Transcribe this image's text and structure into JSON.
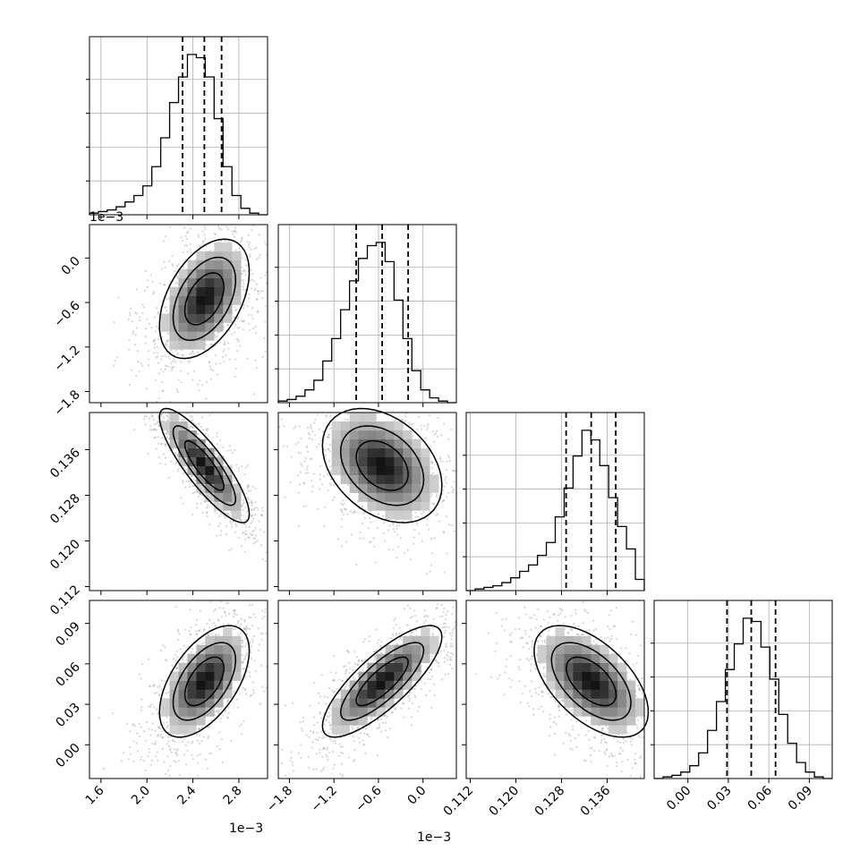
{
  "chart_data": {
    "type": "corner",
    "parameters": [
      {
        "label": "",
        "range": [
          1.5,
          3.05
        ],
        "ticks": [
          1.6,
          2.0,
          2.4,
          2.8
        ],
        "tick_labels": [
          "1.6",
          "2.0",
          "2.4",
          "2.8"
        ],
        "offset_label": "1e−3",
        "quantiles": [
          2.31,
          2.5,
          2.65
        ]
      },
      {
        "label": "",
        "range": [
          -1.95,
          0.45
        ],
        "ticks": [
          -1.8,
          -1.2,
          -0.6,
          0.0
        ],
        "tick_labels": [
          "−1.8",
          "−1.2",
          "−0.6",
          "0.0"
        ],
        "offset_label": "1e−3",
        "quantiles": [
          -0.9,
          -0.55,
          -0.2
        ]
      },
      {
        "label": "",
        "range": [
          0.1113,
          0.1425
        ],
        "ticks": [
          0.112,
          0.12,
          0.128,
          0.136
        ],
        "tick_labels": [
          "0.112",
          "0.120",
          "0.128",
          "0.136"
        ],
        "offset_label": "",
        "quantiles": [
          0.1288,
          0.1332,
          0.1375
        ]
      },
      {
        "label": "",
        "range": [
          -0.025,
          0.107
        ],
        "ticks": [
          0.0,
          0.03,
          0.06,
          0.09
        ],
        "tick_labels": [
          "0.00",
          "0.03",
          "0.06",
          "0.09"
        ],
        "offset_label": "",
        "quantiles": [
          0.029,
          0.047,
          0.065
        ]
      }
    ],
    "correlations": [
      [
        1.0,
        0.45,
        -0.85,
        0.55
      ],
      [
        0.45,
        1.0,
        -0.35,
        0.8
      ],
      [
        -0.85,
        -0.35,
        1.0,
        -0.55
      ],
      [
        0.55,
        0.8,
        -0.55,
        1.0
      ]
    ],
    "histograms": [
      [
        1,
        2,
        3,
        5,
        8,
        12,
        18,
        30,
        48,
        70,
        86,
        100,
        98,
        86,
        60,
        30,
        12,
        4,
        1,
        0
      ],
      [
        1,
        2,
        4,
        8,
        14,
        26,
        40,
        58,
        76,
        90,
        98,
        100,
        88,
        64,
        40,
        20,
        8,
        3,
        1,
        0
      ],
      [
        0,
        1,
        2,
        3,
        5,
        8,
        12,
        16,
        22,
        30,
        46,
        64,
        84,
        100,
        94,
        78,
        58,
        40,
        26,
        7
      ],
      [
        0,
        1,
        2,
        4,
        8,
        16,
        30,
        48,
        68,
        84,
        100,
        98,
        82,
        62,
        40,
        22,
        10,
        4,
        1,
        0
      ]
    ],
    "grid": true,
    "contour_levels": 3
  }
}
